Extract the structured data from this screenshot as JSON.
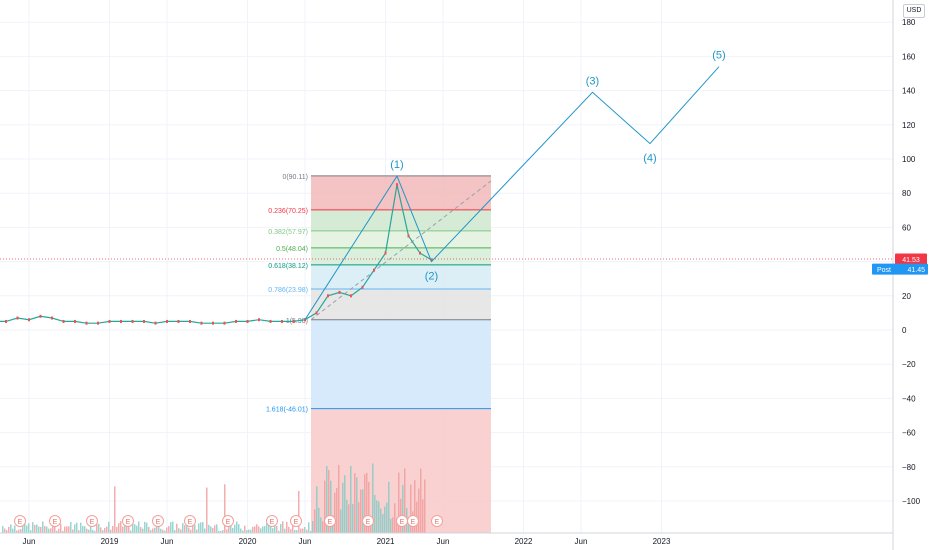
{
  "currency_label": "USD",
  "chart_data": {
    "type": "line",
    "subtype": "candlestick-with-elliott-wave-projection",
    "title": "",
    "xlabel": "",
    "ylabel": "",
    "ylim": [
      -120,
      185
    ],
    "x_ticks": [
      "Jun",
      "2019",
      "Jun",
      "2020",
      "Jun",
      "2021",
      "Jun",
      "2022",
      "Jun",
      "2023"
    ],
    "y_ticks": [
      180,
      160,
      140,
      120,
      100,
      80,
      60,
      40,
      20,
      0,
      -20,
      -40,
      -60,
      -80,
      -100
    ],
    "last_price": {
      "label": "41.53",
      "value": 41.53,
      "color": "#f23645"
    },
    "post_price": {
      "label": "Post",
      "value_label": "41.45",
      "value": 41.45,
      "color": "#2196f3"
    },
    "fib_levels": [
      {
        "ratio": "0",
        "value": 90.11,
        "label": "0(90.11)",
        "color": "#787b86"
      },
      {
        "ratio": "0.236",
        "value": 70.25,
        "label": "0.236(70.25)",
        "color": "#f23645"
      },
      {
        "ratio": "0.382",
        "value": 57.97,
        "label": "0.382(57.97)",
        "color": "#81c784"
      },
      {
        "ratio": "0.5",
        "value": 48.04,
        "label": "0.5(48.04)",
        "color": "#4caf50"
      },
      {
        "ratio": "0.618",
        "value": 38.12,
        "label": "0.618(38.12)",
        "color": "#089981"
      },
      {
        "ratio": "0.786",
        "value": 23.98,
        "label": "0.786(23.98)",
        "color": "#64b5f6"
      },
      {
        "ratio": "1",
        "value": 5.98,
        "label": "1(5.98)",
        "color": "#787b86"
      },
      {
        "ratio": "1.618",
        "value": -46.01,
        "label": "1.618(-46.01)",
        "color": "#2196f3"
      }
    ],
    "wave_points": [
      {
        "label": "",
        "date": "2020-06",
        "value": 6
      },
      {
        "label": "(1)",
        "date": "2021-02",
        "value": 90
      },
      {
        "label": "(2)",
        "date": "2021-05",
        "value": 40
      },
      {
        "label": "(3)",
        "date": "2022-07",
        "value": 139
      },
      {
        "label": "(4)",
        "date": "2022-12",
        "value": 109
      },
      {
        "label": "(5)",
        "date": "2023-06",
        "value": 154
      }
    ],
    "price_series": [
      {
        "date": "2018-04",
        "value": 5
      },
      {
        "date": "2018-05",
        "value": 7
      },
      {
        "date": "2018-06",
        "value": 6
      },
      {
        "date": "2018-07",
        "value": 8
      },
      {
        "date": "2018-08",
        "value": 7
      },
      {
        "date": "2018-09",
        "value": 5
      },
      {
        "date": "2018-10",
        "value": 5
      },
      {
        "date": "2018-11",
        "value": 4
      },
      {
        "date": "2018-12",
        "value": 4
      },
      {
        "date": "2019-01",
        "value": 5
      },
      {
        "date": "2019-02",
        "value": 5
      },
      {
        "date": "2019-03",
        "value": 5
      },
      {
        "date": "2019-04",
        "value": 5
      },
      {
        "date": "2019-05",
        "value": 4
      },
      {
        "date": "2019-06",
        "value": 5
      },
      {
        "date": "2019-07",
        "value": 5
      },
      {
        "date": "2019-08",
        "value": 5
      },
      {
        "date": "2019-09",
        "value": 4
      },
      {
        "date": "2019-10",
        "value": 4
      },
      {
        "date": "2019-11",
        "value": 4
      },
      {
        "date": "2019-12",
        "value": 5
      },
      {
        "date": "2020-01",
        "value": 5
      },
      {
        "date": "2020-02",
        "value": 6
      },
      {
        "date": "2020-03",
        "value": 5
      },
      {
        "date": "2020-04",
        "value": 5
      },
      {
        "date": "2020-05",
        "value": 5
      },
      {
        "date": "2020-06",
        "value": 6
      },
      {
        "date": "2020-07",
        "value": 10
      },
      {
        "date": "2020-08",
        "value": 20
      },
      {
        "date": "2020-09",
        "value": 22
      },
      {
        "date": "2020-10",
        "value": 20
      },
      {
        "date": "2020-11",
        "value": 25
      },
      {
        "date": "2020-12",
        "value": 35
      },
      {
        "date": "2021-01",
        "value": 45
      },
      {
        "date": "2021-02",
        "value": 85
      },
      {
        "date": "2021-03",
        "value": 55
      },
      {
        "date": "2021-04",
        "value": 45
      },
      {
        "date": "2021-05",
        "value": 41
      }
    ],
    "earnings_markers": [
      "E",
      "E",
      "E",
      "E",
      "E",
      "E",
      "E",
      "E",
      "E",
      "E",
      "E",
      "E",
      "E",
      "E",
      "E"
    ],
    "grid": true,
    "legend": "none"
  }
}
